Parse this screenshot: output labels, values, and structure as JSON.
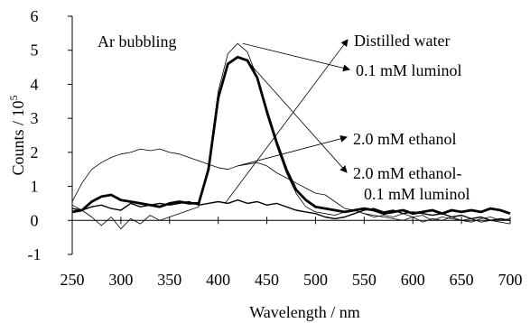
{
  "chart_data": {
    "type": "line",
    "xlabel": "Wavelength / nm",
    "ylabel": "Counts / 10",
    "ylabel_exponent": "5",
    "xlim": [
      250,
      700
    ],
    "ylim": [
      -1,
      6
    ],
    "xticks": [
      250,
      300,
      350,
      400,
      450,
      500,
      550,
      600,
      650,
      700
    ],
    "yticks": [
      -1,
      0,
      1,
      2,
      3,
      4,
      5,
      6
    ],
    "annotation": "Ar bubbling",
    "legend": [
      {
        "label": "Distilled water",
        "label_lines": [
          "Distilled water"
        ],
        "anchor": [
          407,
          0.5
        ]
      },
      {
        "label": "0.1 mM luminol",
        "label_lines": [
          "0.1 mM luminol"
        ],
        "anchor": [
          425,
          5.2
        ]
      },
      {
        "label": "2.0 mM ethanol",
        "label_lines": [
          "2.0 mM ethanol"
        ],
        "anchor": [
          420,
          1.6
        ]
      },
      {
        "label": "2.0 mM ethanol-0.1 mM luminol",
        "label_lines": [
          "2.0 mM ethanol-",
          "0.1 mM luminol"
        ],
        "anchor": [
          428,
          4.75
        ]
      }
    ],
    "series": [
      {
        "stroke": "#000000",
        "width": 1.4,
        "x": [
          250,
          260,
          270,
          280,
          290,
          300,
          310,
          320,
          330,
          340,
          350,
          360,
          370,
          380,
          390,
          400,
          410,
          420,
          430,
          440,
          450,
          460,
          470,
          480,
          490,
          500,
          510,
          520,
          530,
          540,
          550,
          560,
          570,
          580,
          590,
          600,
          610,
          620,
          630,
          640,
          650,
          660,
          670,
          680,
          690,
          700
        ],
        "y": [
          0.35,
          0.3,
          0.4,
          0.45,
          0.35,
          0.3,
          0.5,
          0.4,
          0.45,
          0.5,
          0.45,
          0.5,
          0.55,
          0.45,
          0.5,
          0.55,
          0.5,
          0.6,
          0.5,
          0.55,
          0.45,
          0.5,
          0.4,
          0.3,
          0.25,
          0.2,
          0.1,
          0.05,
          0.1,
          0.2,
          0.3,
          0.35,
          0.25,
          0.3,
          0.2,
          0.25,
          0.2,
          0.15,
          0.2,
          0.1,
          0.15,
          0.05,
          0.1,
          0.0,
          0.05,
          0.0
        ]
      },
      {
        "stroke": "#000000",
        "width": 0.8,
        "x": [
          250,
          260,
          270,
          280,
          290,
          300,
          310,
          320,
          330,
          340,
          350,
          360,
          370,
          380,
          390,
          400,
          410,
          420,
          430,
          440,
          450,
          460,
          470,
          480,
          490,
          500,
          510,
          520,
          530,
          540,
          550,
          560,
          570,
          580,
          590,
          600,
          610,
          620,
          630,
          640,
          650,
          660,
          670,
          680,
          690,
          700
        ],
        "y": [
          0.45,
          0.3,
          0.1,
          -0.15,
          0.1,
          -0.25,
          0.05,
          -0.1,
          0.15,
          0.0,
          0.1,
          0.2,
          0.3,
          0.4,
          1.6,
          3.8,
          4.9,
          5.2,
          4.95,
          4.2,
          3.1,
          2.2,
          1.4,
          0.8,
          0.4,
          0.25,
          0.2,
          0.15,
          0.25,
          0.3,
          0.2,
          0.1,
          0.15,
          0.1,
          0.2,
          0.1,
          0.15,
          0.0,
          0.1,
          0.05,
          0.0,
          0.05,
          -0.05,
          0.0,
          -0.05,
          -0.1
        ]
      },
      {
        "stroke": "#000000",
        "width": 0.8,
        "x": [
          250,
          260,
          270,
          280,
          290,
          300,
          310,
          320,
          330,
          340,
          350,
          360,
          370,
          380,
          390,
          400,
          410,
          420,
          430,
          440,
          450,
          460,
          470,
          480,
          490,
          500,
          510,
          520,
          530,
          540,
          550,
          560,
          570,
          580,
          590,
          600,
          610,
          620,
          630,
          640,
          650,
          660,
          670,
          680,
          690,
          700
        ],
        "y": [
          0.55,
          1.1,
          1.5,
          1.7,
          1.85,
          1.95,
          2.0,
          2.1,
          2.05,
          2.1,
          2.0,
          1.95,
          1.85,
          1.75,
          1.65,
          1.55,
          1.5,
          1.6,
          1.65,
          1.7,
          1.6,
          1.4,
          1.25,
          1.1,
          0.95,
          0.8,
          0.75,
          0.55,
          0.35,
          0.3,
          0.2,
          0.15,
          0.1,
          0.05,
          0.0,
          0.1,
          -0.05,
          0.05,
          0.0,
          0.1,
          0.0,
          -0.05,
          0.05,
          0.1,
          0.0,
          0.05
        ]
      },
      {
        "stroke": "#000000",
        "width": 2.8,
        "x": [
          250,
          260,
          270,
          280,
          290,
          300,
          310,
          320,
          330,
          340,
          350,
          360,
          370,
          380,
          390,
          400,
          410,
          420,
          430,
          440,
          450,
          460,
          470,
          480,
          490,
          500,
          510,
          520,
          530,
          540,
          550,
          560,
          570,
          580,
          590,
          600,
          610,
          620,
          630,
          640,
          650,
          660,
          670,
          680,
          690,
          700
        ],
        "y": [
          0.25,
          0.3,
          0.55,
          0.7,
          0.75,
          0.6,
          0.55,
          0.5,
          0.45,
          0.4,
          0.5,
          0.55,
          0.5,
          0.5,
          1.5,
          3.6,
          4.6,
          4.8,
          4.7,
          4.2,
          3.2,
          2.3,
          1.5,
          0.9,
          0.6,
          0.4,
          0.35,
          0.3,
          0.25,
          0.3,
          0.35,
          0.3,
          0.2,
          0.25,
          0.3,
          0.2,
          0.25,
          0.3,
          0.2,
          0.3,
          0.25,
          0.3,
          0.25,
          0.35,
          0.3,
          0.2
        ]
      }
    ]
  }
}
